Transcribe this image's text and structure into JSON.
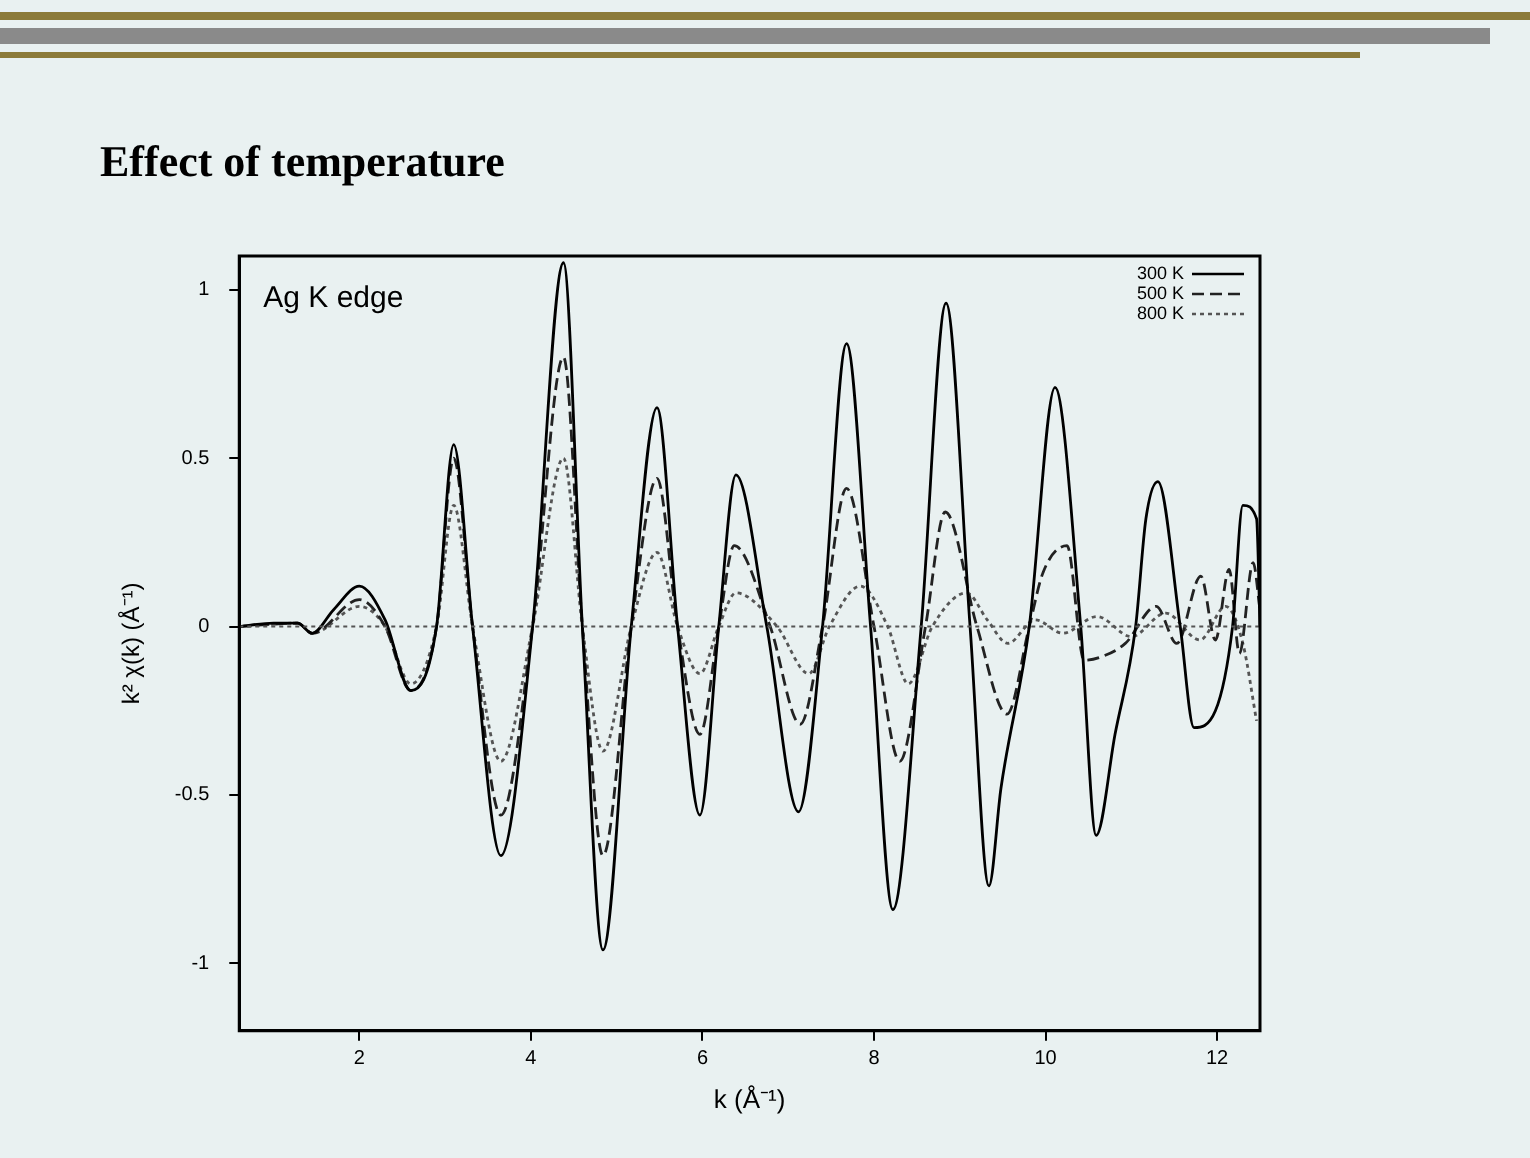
{
  "chart_data": {
    "type": "line",
    "title": "Effect of temperature",
    "xlabel": "k (Å⁻¹)",
    "ylabel": "k² χ(k) (Å⁻¹)",
    "annotations": [
      "Ag K edge"
    ],
    "xlim": [
      0.6,
      12.5
    ],
    "xticks": [
      2,
      4,
      6,
      8,
      10,
      12
    ],
    "ylim": [
      -1.2,
      1.1
    ],
    "yticks": [
      -1,
      -0.5,
      0,
      0.5,
      1
    ],
    "grid": false,
    "legend": "top right",
    "marker": "none",
    "ref_lines": [
      {
        "axis": "y",
        "value": 0,
        "color": "#555555",
        "line_style": "dotted"
      }
    ],
    "series": [
      {
        "name": "300 K",
        "color": "#000000",
        "line_style": "solid",
        "x": [
          0.6,
          1.0,
          1.28,
          1.45,
          1.7,
          2.0,
          2.3,
          2.6,
          2.9,
          3.1,
          3.32,
          3.65,
          4.02,
          4.38,
          4.6,
          4.84,
          5.17,
          5.47,
          5.71,
          5.97,
          6.19,
          6.39,
          6.75,
          7.12,
          7.4,
          7.68,
          7.96,
          8.22,
          8.55,
          8.84,
          9.12,
          9.34,
          9.48,
          9.81,
          10.11,
          10.41,
          10.59,
          10.81,
          11.05,
          11.17,
          11.31,
          11.57,
          11.73,
          11.98,
          12.18,
          12.3,
          12.46,
          12.5
        ],
        "values": [
          0,
          0.01,
          0.01,
          -0.02,
          0.05,
          0.12,
          0.02,
          -0.19,
          0,
          0.54,
          0,
          -0.68,
          0,
          1.08,
          0,
          -0.96,
          0,
          0.65,
          0,
          -0.56,
          0,
          0.45,
          0,
          -0.55,
          0,
          0.84,
          0,
          -0.84,
          0,
          0.96,
          0,
          -0.77,
          -0.48,
          0,
          0.71,
          0,
          -0.62,
          -0.32,
          0,
          0.32,
          0.43,
          0,
          -0.3,
          -0.25,
          0,
          0.36,
          0.32,
          0
        ]
      },
      {
        "name": "500 K",
        "color": "#222222",
        "line_style": "dashed",
        "x": [
          0.6,
          1.28,
          1.45,
          2.0,
          2.3,
          2.6,
          2.9,
          3.1,
          3.32,
          3.65,
          4.02,
          4.38,
          4.6,
          4.84,
          5.17,
          5.47,
          5.71,
          5.97,
          6.19,
          6.37,
          6.79,
          7.14,
          7.4,
          7.68,
          8.0,
          8.3,
          8.6,
          8.83,
          9.2,
          9.55,
          9.81,
          9.97,
          10.25,
          10.45,
          10.65,
          10.93,
          11.29,
          11.53,
          11.81,
          11.98,
          12.14,
          12.26,
          12.42,
          12.5
        ],
        "values": [
          0,
          0.01,
          -0.02,
          0.08,
          0,
          -0.19,
          0,
          0.5,
          0,
          -0.56,
          0,
          0.8,
          0,
          -0.68,
          0,
          0.44,
          0,
          -0.32,
          0,
          0.24,
          0,
          -0.29,
          0,
          0.41,
          0,
          -0.4,
          0,
          0.34,
          0,
          -0.26,
          0,
          0.16,
          0.24,
          -0.1,
          -0.09,
          -0.05,
          0.06,
          -0.05,
          0.15,
          -0.04,
          0.17,
          -0.08,
          0.19,
          0.05
        ]
      },
      {
        "name": "800 K",
        "color": "#555555",
        "line_style": "dotted",
        "x": [
          0.6,
          1.28,
          1.45,
          2.0,
          2.3,
          2.6,
          2.9,
          3.1,
          3.32,
          3.65,
          4.02,
          4.38,
          4.6,
          4.84,
          5.17,
          5.47,
          5.71,
          5.97,
          6.19,
          6.39,
          6.87,
          7.24,
          7.48,
          7.84,
          8.16,
          8.4,
          8.68,
          9.08,
          9.32,
          9.56,
          9.88,
          10.2,
          10.6,
          11.0,
          11.4,
          11.8,
          12.1,
          12.3,
          12.46
        ],
        "values": [
          0,
          0.01,
          -0.02,
          0.06,
          0,
          -0.17,
          0,
          0.36,
          0,
          -0.4,
          0,
          0.5,
          0,
          -0.37,
          0,
          0.22,
          0,
          -0.14,
          0,
          0.1,
          0,
          -0.14,
          0,
          0.12,
          0,
          -0.17,
          0,
          0.1,
          0.02,
          -0.05,
          0.02,
          -0.02,
          0.03,
          -0.03,
          0.04,
          -0.04,
          0.06,
          -0.05,
          -0.28
        ]
      }
    ]
  }
}
